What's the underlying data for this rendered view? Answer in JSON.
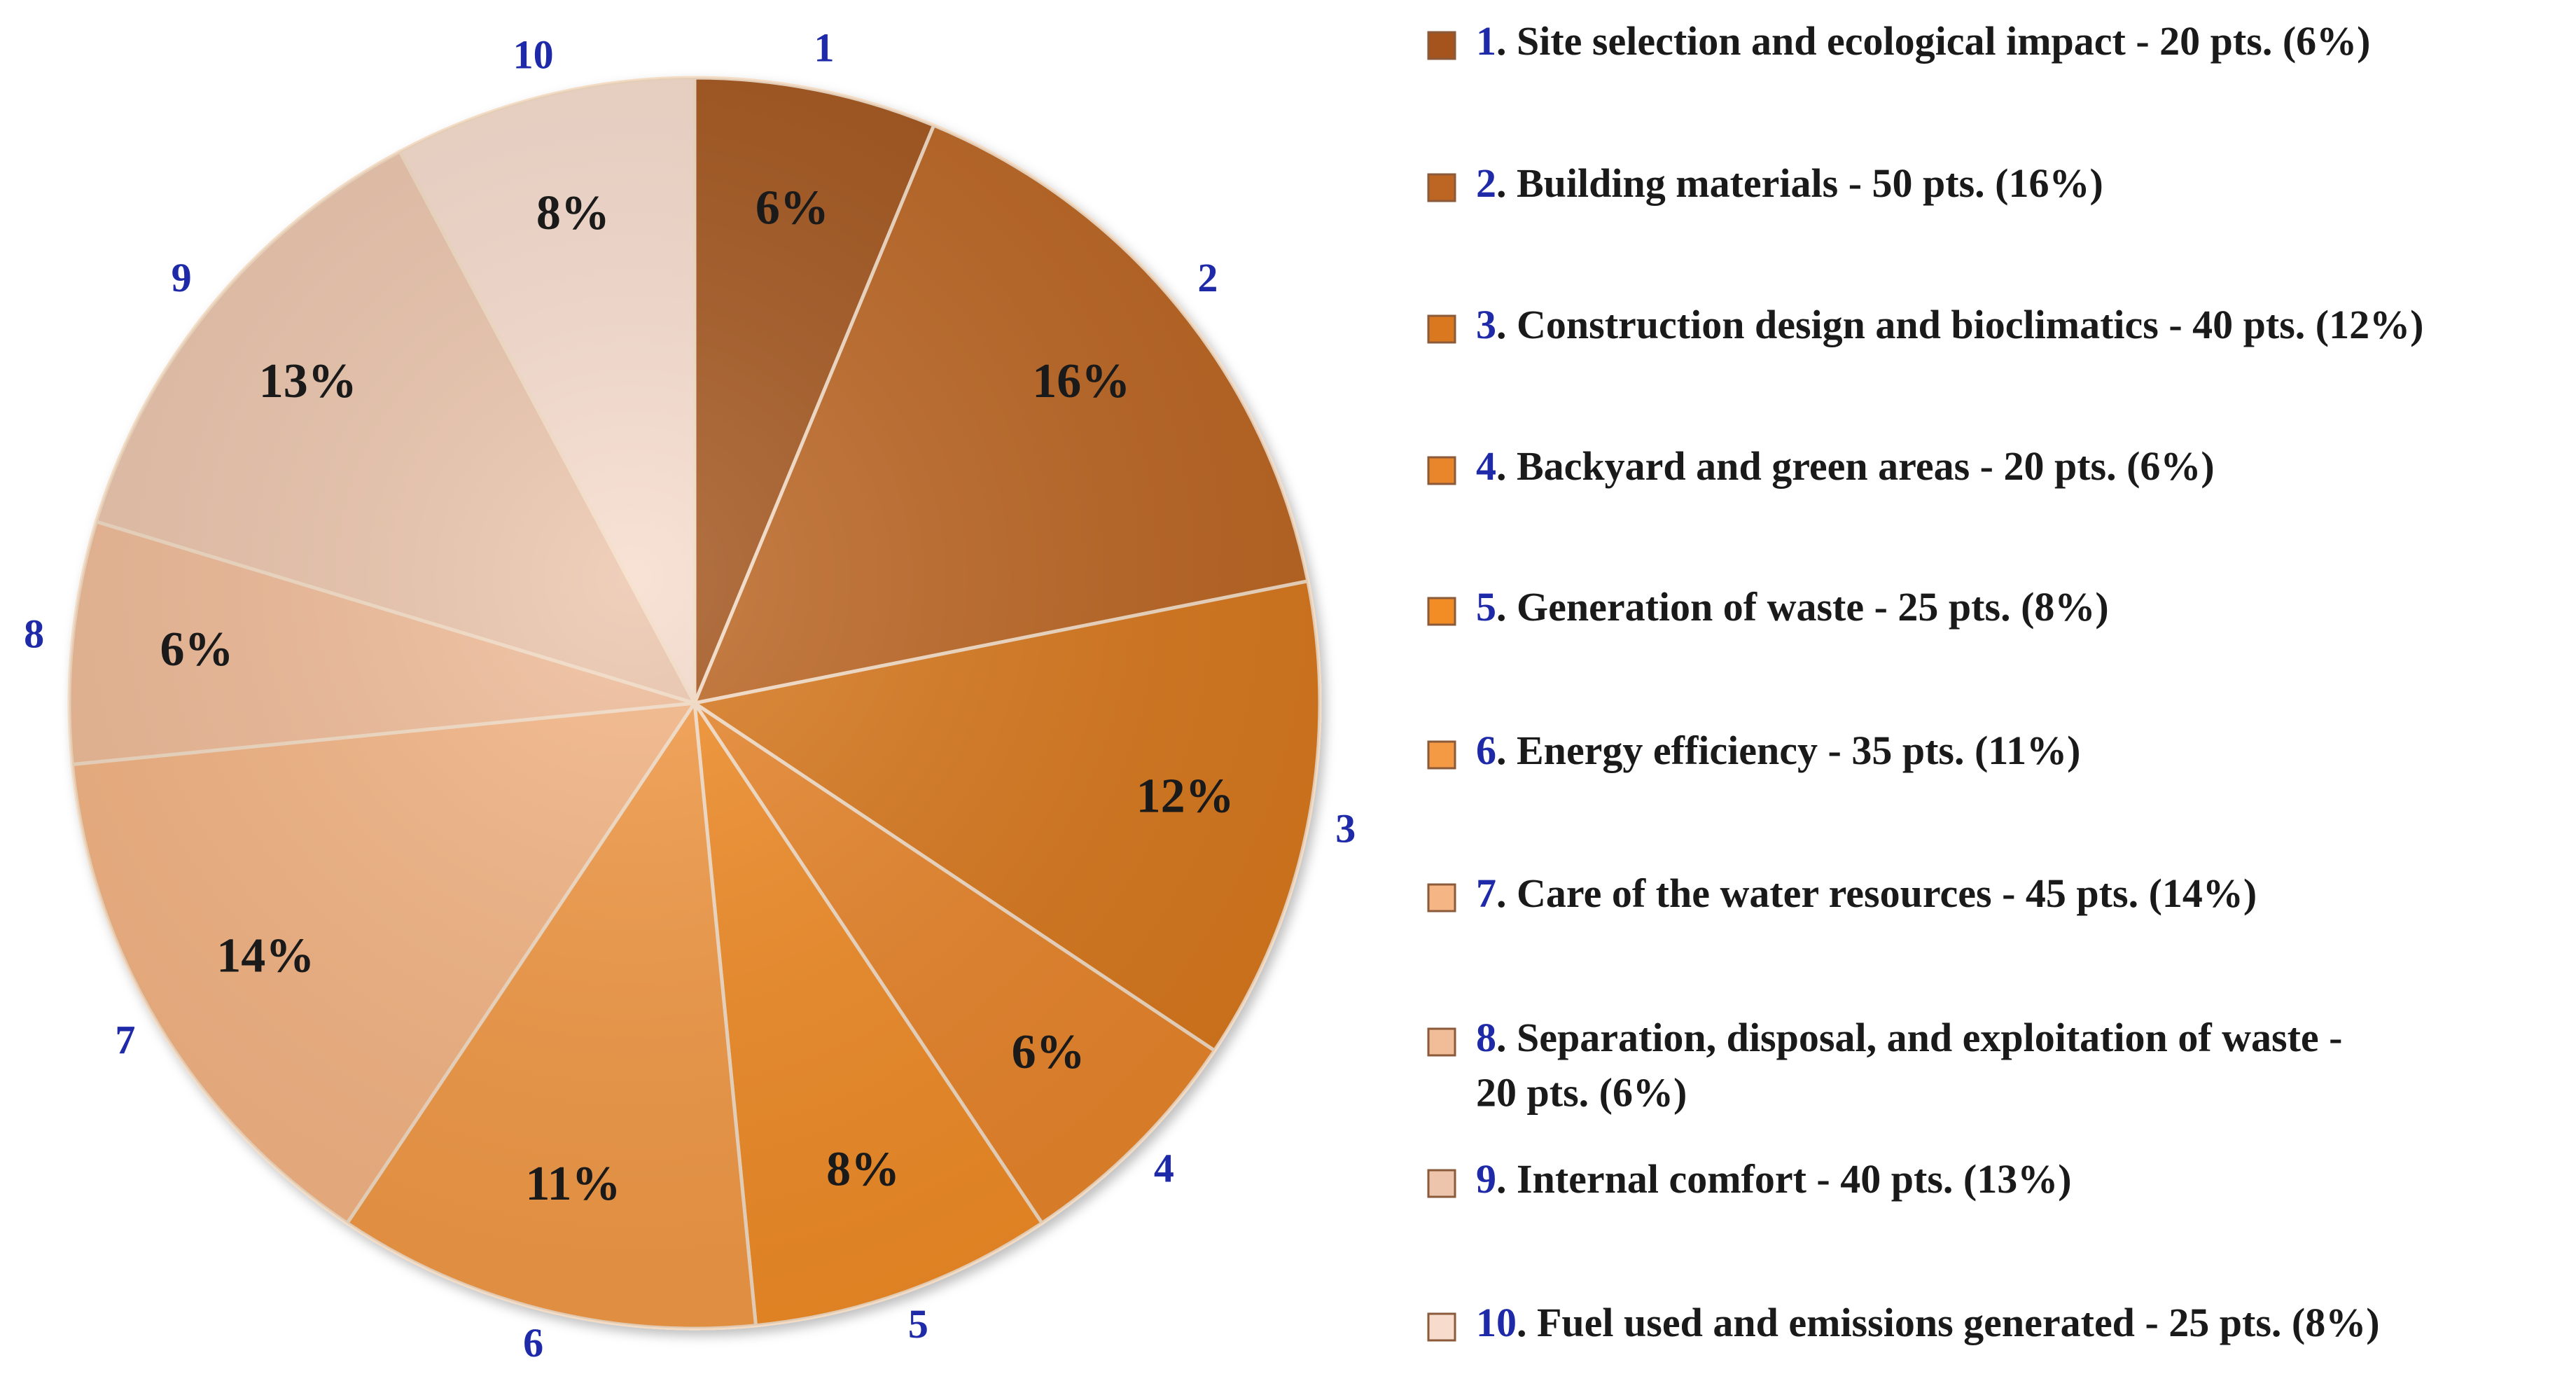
{
  "chart_data": {
    "type": "pie",
    "title": "",
    "start_angle": "12 o'clock",
    "direction": "clockwise",
    "slices": [
      {
        "number": "1",
        "value": 20,
        "label": "6%",
        "color": "#a4541c",
        "legend_text": ". Site selection and ecological impact - 20 pts. (6%)"
      },
      {
        "number": "2",
        "value": 50,
        "label": "16%",
        "color": "#bd6623",
        "legend_text": ". Building materials - 50 pts. (16%)"
      },
      {
        "number": "3",
        "value": 40,
        "label": "12%",
        "color": "#d9781f",
        "legend_text": ". Construction design and bioclimatics - 40 pts. (12%)"
      },
      {
        "number": "4",
        "value": 20,
        "label": "6%",
        "color": "#e9852b",
        "legend_text": ". Backyard and green areas - 20 pts. (6%)"
      },
      {
        "number": "5",
        "value": 25,
        "label": "8%",
        "color": "#f28c25",
        "legend_text": ". Generation of waste - 25 pts. (8%)"
      },
      {
        "number": "6",
        "value": 35,
        "label": "11%",
        "color": "#f49a45",
        "legend_text": ". Energy efficiency - 35 pts. (11%)"
      },
      {
        "number": "7",
        "value": 45,
        "label": "14%",
        "color": "#f6b584",
        "legend_text": ". Care of the water resources - 45 pts. (14%)"
      },
      {
        "number": "8",
        "value": 20,
        "label": "6%",
        "color": "#f1bc98",
        "legend_text": ". Separation, disposal, and exploitation of waste -"
      },
      {
        "number": "9",
        "value": 40,
        "label": "13%",
        "color": "#ecc5ac",
        "legend_text": ". Internal comfort - 40 pts. (13%)"
      },
      {
        "number": "10",
        "value": 25,
        "label": "8%",
        "color": "#f7dccd",
        "legend_text": ". Fuel used and emissions generated - 25 pts. (8%)"
      }
    ],
    "legend_extra_line_8": "20 pts. (6%)",
    "legend_position": "right",
    "number_color": "#1f2aa8"
  }
}
